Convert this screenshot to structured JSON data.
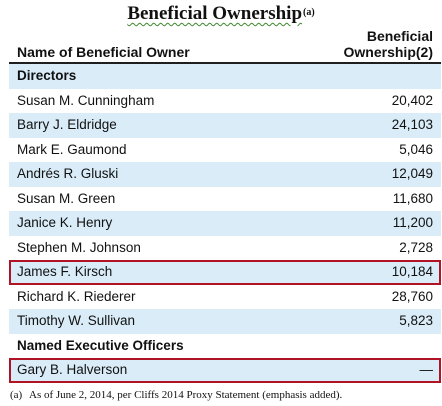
{
  "title": {
    "text": "Beneficial Ownership",
    "sup": "(a)"
  },
  "header": {
    "name_col": "Name of Beneficial Owner",
    "value_col_line1": "Beneficial",
    "value_col_line2": "Ownership(2)"
  },
  "sections": {
    "directors": "Directors",
    "officers": "Named Executive Officers"
  },
  "rows": [
    {
      "name": "Susan M. Cunningham",
      "value": "20,402"
    },
    {
      "name": "Barry J. Eldridge",
      "value": "24,103"
    },
    {
      "name": "Mark E. Gaumond",
      "value": "5,046"
    },
    {
      "name": "Andrés R. Gluski",
      "value": "12,049"
    },
    {
      "name": "Susan M. Green",
      "value": "11,680"
    },
    {
      "name": "Janice K. Henry",
      "value": "11,200"
    },
    {
      "name": "Stephen M. Johnson",
      "value": "2,728"
    },
    {
      "name": "James F. Kirsch",
      "value": "10,184"
    },
    {
      "name": "Richard K. Riederer",
      "value": "28,760"
    },
    {
      "name": "Timothy W. Sullivan",
      "value": "5,823"
    },
    {
      "name": "Gary B. Halverson",
      "value": "—"
    }
  ],
  "footnote": {
    "mark": "(a)",
    "text": "As of June 2, 2014, per Cliffs 2014 Proxy Statement (emphasis added)."
  },
  "colors": {
    "row_shade": "#d9ecf8",
    "highlight_border": "#b01424"
  }
}
